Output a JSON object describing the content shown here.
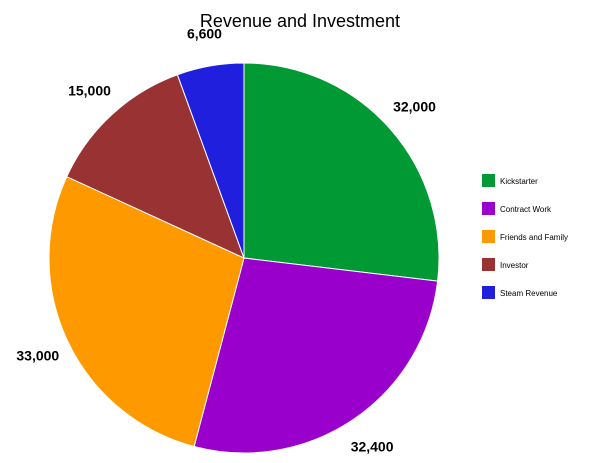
{
  "chart_data": {
    "type": "pie",
    "title": "Revenue and Investment",
    "categories": [
      "Kickstarter",
      "Contract Work",
      "Friends and Family",
      "Investor",
      "Steam Revenue"
    ],
    "values": [
      32000,
      32400,
      33000,
      15000,
      6600
    ],
    "value_labels": [
      "32,000",
      "32,400",
      "33,000",
      "15,000",
      "6,600"
    ],
    "colors": [
      "#009933",
      "#9900cc",
      "#ff9900",
      "#993333",
      "#1f1fdd"
    ],
    "legend_position": "right",
    "start_angle_deg": 0,
    "direction": "clockwise"
  }
}
